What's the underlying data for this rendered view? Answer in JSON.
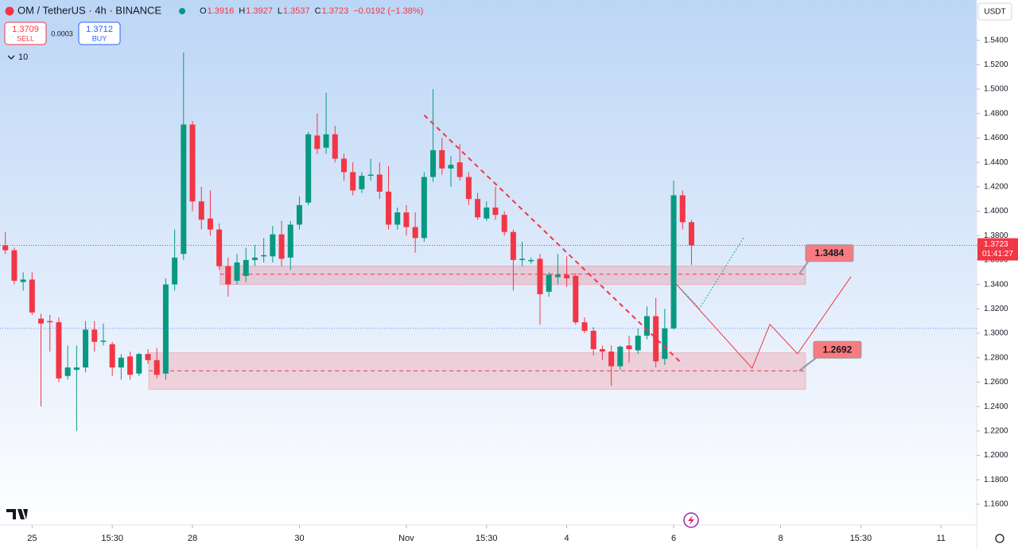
{
  "header": {
    "symbol": "OM / TetherUS · 4h · BINANCE",
    "ohlc": [
      {
        "label": "O",
        "value": "1.3916"
      },
      {
        "label": "H",
        "value": "1.3927"
      },
      {
        "label": "L",
        "value": "1.3537"
      },
      {
        "label": "C",
        "value": "1.3723"
      }
    ],
    "change": "−0.0192 (−1.38%)"
  },
  "trade": {
    "sell_price": "1.3709",
    "sell": "SELL",
    "spread": "0.0003",
    "buy_price": "1.3712",
    "buy": "BUY"
  },
  "indicators": "10",
  "currency": "USDT",
  "chart_data": {
    "type": "candlestick",
    "up_color": "#089981",
    "down_color": "#f23645",
    "open": [
      1.372,
      1.368,
      1.342,
      1.344,
      1.312,
      1.31,
      1.309,
      1.265,
      1.27,
      1.272,
      1.303,
      1.293,
      1.291,
      1.272,
      1.281,
      1.267,
      1.283,
      1.278,
      1.267,
      1.34,
      1.365,
      1.471,
      1.408,
      1.394,
      1.385,
      1.355,
      1.343,
      1.347,
      1.36,
      1.363,
      1.363,
      1.381,
      1.362,
      1.389,
      1.407,
      1.462,
      1.452,
      1.463,
      1.443,
      1.432,
      1.418,
      1.429,
      1.43,
      1.416,
      1.389,
      1.399,
      1.387,
      1.378,
      1.428,
      1.45,
      1.435,
      1.44,
      1.428,
      1.41,
      1.394,
      1.403,
      1.397,
      1.383,
      1.36,
      1.359,
      1.361,
      1.334,
      1.346,
      1.348,
      1.347,
      1.309,
      1.302,
      1.287,
      1.285,
      1.273,
      1.29,
      1.286,
      1.298,
      1.314,
      1.279,
      1.304,
      1.413,
      1.391
    ],
    "high": [
      1.383,
      1.37,
      1.35,
      1.35,
      1.316,
      1.315,
      1.313,
      1.29,
      1.29,
      1.31,
      1.31,
      1.308,
      1.293,
      1.283,
      1.285,
      1.284,
      1.287,
      1.288,
      1.345,
      1.385,
      1.53,
      1.474,
      1.42,
      1.417,
      1.39,
      1.362,
      1.365,
      1.37,
      1.372,
      1.378,
      1.388,
      1.392,
      1.392,
      1.412,
      1.465,
      1.48,
      1.497,
      1.47,
      1.447,
      1.44,
      1.432,
      1.443,
      1.44,
      1.437,
      1.403,
      1.405,
      1.399,
      1.432,
      1.5,
      1.46,
      1.445,
      1.455,
      1.432,
      1.415,
      1.408,
      1.42,
      1.4,
      1.385,
      1.375,
      1.362,
      1.365,
      1.35,
      1.365,
      1.363,
      1.349,
      1.313,
      1.305,
      1.29,
      1.29,
      1.29,
      1.298,
      1.304,
      1.322,
      1.329,
      1.32,
      1.425,
      1.417,
      1.393
    ],
    "low": [
      1.365,
      1.34,
      1.335,
      1.315,
      1.24,
      1.285,
      1.26,
      1.262,
      1.22,
      1.268,
      1.285,
      1.29,
      1.265,
      1.262,
      1.262,
      1.265,
      1.275,
      1.263,
      1.262,
      1.335,
      1.36,
      1.4,
      1.385,
      1.38,
      1.352,
      1.33,
      1.34,
      1.342,
      1.355,
      1.358,
      1.358,
      1.355,
      1.352,
      1.385,
      1.405,
      1.447,
      1.447,
      1.44,
      1.425,
      1.413,
      1.415,
      1.425,
      1.41,
      1.385,
      1.385,
      1.38,
      1.366,
      1.375,
      1.424,
      1.43,
      1.42,
      1.425,
      1.405,
      1.393,
      1.392,
      1.393,
      1.38,
      1.335,
      1.355,
      1.357,
      1.307,
      1.33,
      1.34,
      1.338,
      1.307,
      1.3,
      1.282,
      1.278,
      1.257,
      1.27,
      1.276,
      1.283,
      1.295,
      1.272,
      1.274,
      1.303,
      1.385,
      1.356
    ],
    "close": [
      1.368,
      1.343,
      1.344,
      1.317,
      1.308,
      1.309,
      1.263,
      1.272,
      1.272,
      1.303,
      1.293,
      1.294,
      1.272,
      1.28,
      1.266,
      1.283,
      1.278,
      1.266,
      1.34,
      1.362,
      1.471,
      1.408,
      1.393,
      1.385,
      1.355,
      1.34,
      1.358,
      1.36,
      1.362,
      1.364,
      1.381,
      1.361,
      1.389,
      1.405,
      1.463,
      1.451,
      1.463,
      1.443,
      1.432,
      1.417,
      1.429,
      1.43,
      1.416,
      1.389,
      1.399,
      1.387,
      1.378,
      1.428,
      1.45,
      1.435,
      1.438,
      1.428,
      1.41,
      1.395,
      1.403,
      1.397,
      1.383,
      1.36,
      1.361,
      1.36,
      1.332,
      1.348,
      1.348,
      1.345,
      1.309,
      1.302,
      1.287,
      1.285,
      1.273,
      1.289,
      1.287,
      1.298,
      1.314,
      1.277,
      1.304,
      1.413,
      1.391,
      1.372
    ],
    "xlim": [
      -0.6,
      109
    ],
    "xticks": [
      {
        "value": 3,
        "label": "25"
      },
      {
        "value": 12,
        "label": "15:30"
      },
      {
        "value": 21,
        "label": "28"
      },
      {
        "value": 33,
        "label": "30"
      },
      {
        "value": 45,
        "label": "Nov"
      },
      {
        "value": 54,
        "label": "15:30"
      },
      {
        "value": 63,
        "label": "4"
      },
      {
        "value": 75,
        "label": "6"
      },
      {
        "value": 87,
        "label": "8"
      },
      {
        "value": 96,
        "label": "15:30"
      },
      {
        "value": 105,
        "label": "11"
      }
    ],
    "ylim": [
      1.143,
      1.573
    ],
    "yticks": [
      {
        "value": 1.16,
        "label": "1.1600"
      },
      {
        "value": 1.18,
        "label": "1.1800"
      },
      {
        "value": 1.2,
        "label": "1.2000"
      },
      {
        "value": 1.22,
        "label": "1.2200"
      },
      {
        "value": 1.24,
        "label": "1.2400"
      },
      {
        "value": 1.26,
        "label": "1.2600"
      },
      {
        "value": 1.28,
        "label": "1.2800"
      },
      {
        "value": 1.3,
        "label": "1.3000"
      },
      {
        "value": 1.32,
        "label": "1.3200"
      },
      {
        "value": 1.34,
        "label": "1.3400"
      },
      {
        "value": 1.36,
        "label": "1.3600"
      },
      {
        "value": 1.38,
        "label": "1.3800"
      },
      {
        "value": 1.4,
        "label": "1.4000"
      },
      {
        "value": 1.42,
        "label": "1.4200"
      },
      {
        "value": 1.44,
        "label": "1.4400"
      },
      {
        "value": 1.46,
        "label": "1.4600"
      },
      {
        "value": 1.48,
        "label": "1.4800"
      },
      {
        "value": 1.5,
        "label": "1.5000"
      },
      {
        "value": 1.52,
        "label": "1.5200"
      },
      {
        "value": 1.54,
        "label": "1.5400"
      }
    ],
    "price_tag": "1.3723",
    "countdown": "01:41:27",
    "reference_line": 1.304,
    "zones": [
      {
        "x": [
          24.1,
          89.8
        ],
        "y": [
          1.34,
          1.355
        ],
        "level": 1.3484,
        "label": "1.3484"
      },
      {
        "x": [
          16.1,
          89.8
        ],
        "y": [
          1.254,
          1.284
        ],
        "level": 1.2692,
        "label": "1.2692"
      }
    ],
    "trendline": {
      "color": "#f23645",
      "x": [
        47,
        76
      ],
      "y": [
        1.4787,
        1.2747
      ]
    },
    "projections": [
      {
        "color": "#f23645",
        "x": [
          75.1,
          83.8,
          85.8,
          88.9,
          94.9
        ],
        "y": [
          1.3418,
          1.2714,
          1.3073,
          1.2832,
          1.3464
        ]
      },
      {
        "color": "#26a69a",
        "x": [
          75.1,
          77.9,
          82.9
        ],
        "y": [
          1.3418,
          1.3203,
          1.379
        ]
      }
    ]
  }
}
